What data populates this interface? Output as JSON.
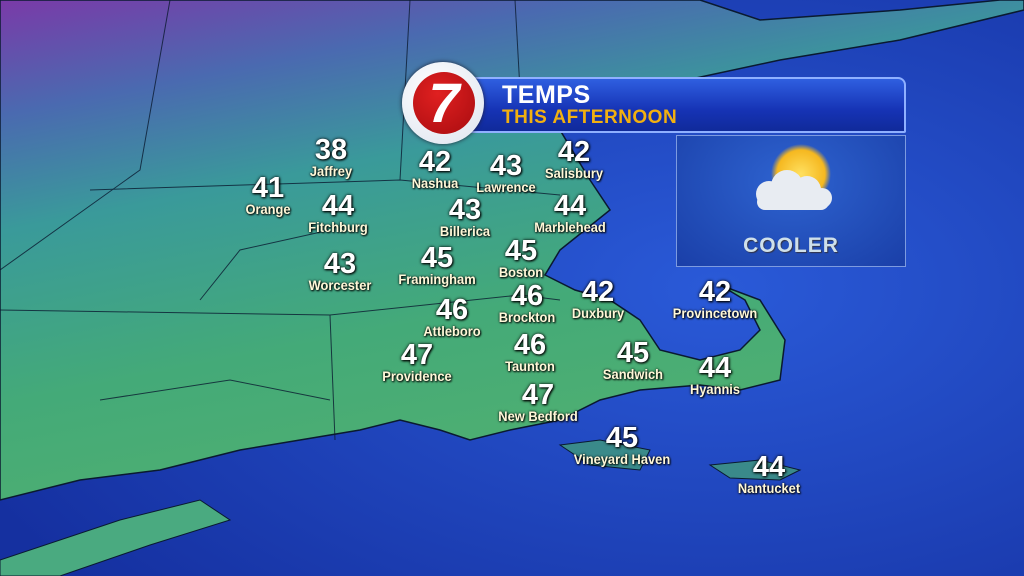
{
  "header": {
    "logo_text": "7",
    "title": "TEMPS",
    "subtitle": "THIS AFTERNOON"
  },
  "forecast_panel": {
    "icon": "partly-cloudy-icon",
    "label": "COOLER"
  },
  "colors": {
    "banner_blue": "#1633b5",
    "subtitle_gold": "#f2b010",
    "logo_red": "#c41218",
    "ocean": "#1a3fb0",
    "land": "#3aa07a"
  },
  "cities": [
    {
      "name": "Jaffrey",
      "temp": "38"
    },
    {
      "name": "Orange",
      "temp": "41"
    },
    {
      "name": "Fitchburg",
      "temp": "44"
    },
    {
      "name": "Nashua",
      "temp": "42"
    },
    {
      "name": "Lawrence",
      "temp": "43"
    },
    {
      "name": "Salisbury",
      "temp": "42"
    },
    {
      "name": "Billerica",
      "temp": "43"
    },
    {
      "name": "Marblehead",
      "temp": "44"
    },
    {
      "name": "Framingham",
      "temp": "45"
    },
    {
      "name": "Boston",
      "temp": "45"
    },
    {
      "name": "Worcester",
      "temp": "43"
    },
    {
      "name": "Attleboro",
      "temp": "46"
    },
    {
      "name": "Brockton",
      "temp": "46"
    },
    {
      "name": "Duxbury",
      "temp": "42"
    },
    {
      "name": "Provincetown",
      "temp": "42"
    },
    {
      "name": "Providence",
      "temp": "47"
    },
    {
      "name": "Taunton",
      "temp": "46"
    },
    {
      "name": "Sandwich",
      "temp": "45"
    },
    {
      "name": "Hyannis",
      "temp": "44"
    },
    {
      "name": "New Bedford",
      "temp": "47"
    },
    {
      "name": "Vineyard Haven",
      "temp": "45"
    },
    {
      "name": "Nantucket",
      "temp": "44"
    }
  ]
}
